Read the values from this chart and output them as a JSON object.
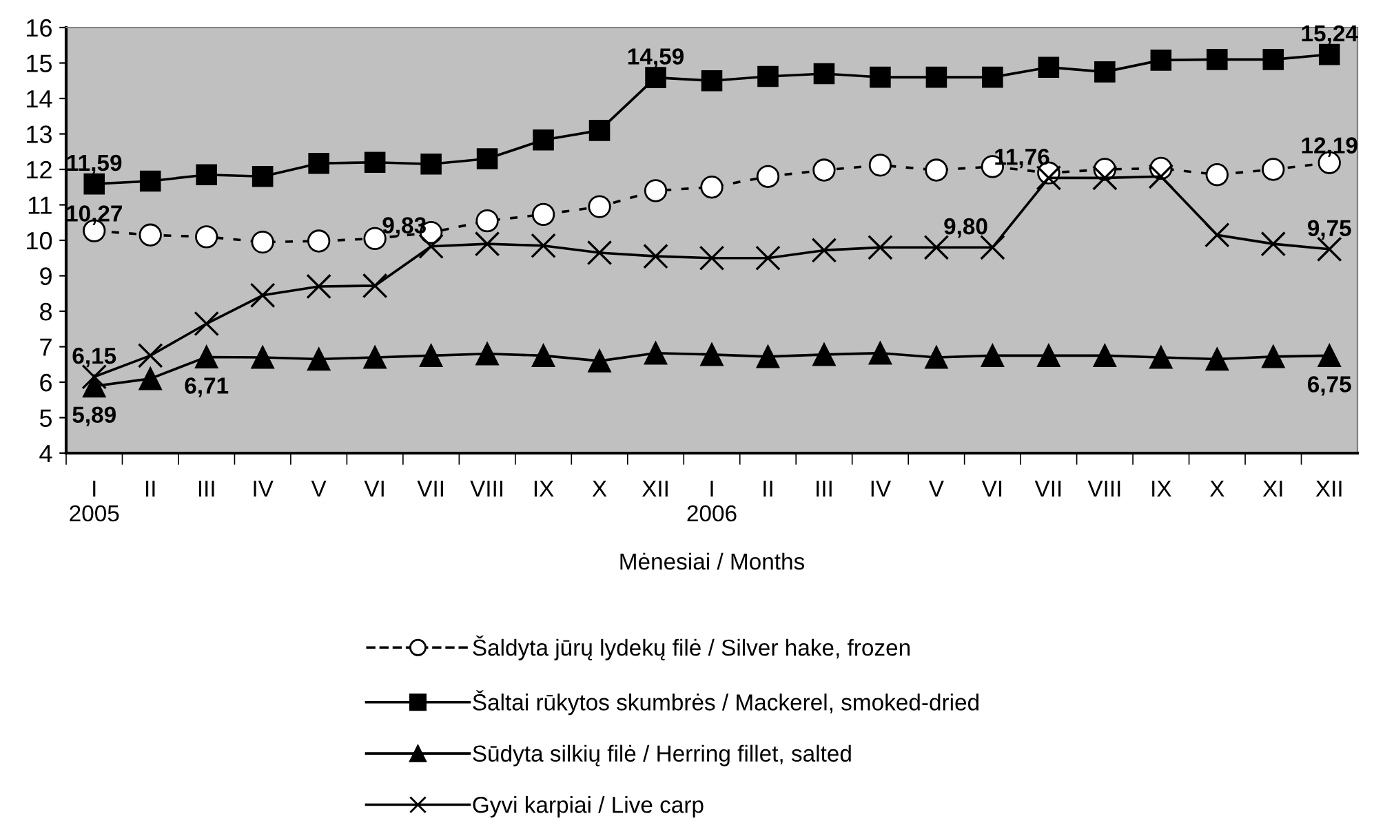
{
  "chart_data": {
    "type": "line",
    "xlabel": "Mėnesiai / Months",
    "categories": [
      "I\n2005",
      "II",
      "III",
      "IV",
      "V",
      "VI",
      "VII",
      "VIII",
      "IX",
      "X",
      "XII",
      "I\n2006",
      "II",
      "III",
      "IV",
      "V",
      "VI",
      "VII",
      "VIII",
      "IX",
      "X",
      "XI",
      "XII"
    ],
    "ylim": [
      4,
      16
    ],
    "yticks": [
      4,
      5,
      6,
      7,
      8,
      9,
      10,
      11,
      12,
      13,
      14,
      15,
      16
    ],
    "grid": false,
    "legend": "bottom",
    "series": [
      {
        "name": "Šaldyta jūrų lydekų filė / Silver hake, frozen",
        "color": "#000000",
        "marker": "circle",
        "line_style": "dashed",
        "values": [
          10.27,
          10.15,
          10.1,
          9.95,
          9.98,
          10.05,
          10.22,
          10.55,
          10.73,
          10.95,
          11.4,
          11.5,
          11.8,
          11.98,
          12.12,
          11.98,
          12.08,
          11.9,
          12.0,
          12.03,
          11.85,
          12.0,
          12.19
        ],
        "value_labels": [
          "10,27",
          null,
          null,
          null,
          null,
          null,
          null,
          null,
          null,
          null,
          null,
          null,
          null,
          null,
          null,
          null,
          null,
          null,
          null,
          null,
          null,
          null,
          "12,19"
        ]
      },
      {
        "name": "Šaltai rūkytos skumbrės / Mackerel, smoked-dried",
        "color": "#000000",
        "marker": "square",
        "line_style": "solid",
        "values": [
          11.59,
          11.67,
          11.85,
          11.8,
          12.17,
          12.2,
          12.15,
          12.3,
          12.83,
          13.1,
          14.59,
          14.5,
          14.62,
          14.7,
          14.6,
          14.6,
          14.6,
          14.88,
          14.75,
          15.08,
          15.1,
          15.1,
          15.24
        ],
        "value_labels": [
          "11,59",
          null,
          null,
          null,
          null,
          null,
          null,
          null,
          null,
          null,
          "14,59",
          null,
          null,
          null,
          null,
          null,
          null,
          null,
          null,
          null,
          null,
          null,
          "15,24"
        ]
      },
      {
        "name": "Sūdyta silkių filė / Herring fillet, salted",
        "color": "#000000",
        "marker": "triangle",
        "line_style": "solid",
        "values": [
          5.89,
          6.1,
          6.71,
          6.7,
          6.65,
          6.7,
          6.75,
          6.8,
          6.75,
          6.6,
          6.82,
          6.78,
          6.72,
          6.78,
          6.82,
          6.7,
          6.75,
          6.75,
          6.75,
          6.7,
          6.65,
          6.72,
          6.75
        ],
        "value_labels": [
          "5,89",
          null,
          "6,71",
          null,
          null,
          null,
          null,
          null,
          null,
          null,
          null,
          null,
          null,
          null,
          null,
          null,
          null,
          null,
          null,
          null,
          null,
          null,
          "6,75"
        ]
      },
      {
        "name": "Gyvi karpiai / Live carp",
        "color": "#000000",
        "marker": "cross",
        "line_style": "solid",
        "values": [
          6.15,
          6.75,
          7.65,
          8.45,
          8.7,
          8.72,
          9.83,
          9.9,
          9.85,
          9.65,
          9.55,
          9.5,
          9.5,
          9.72,
          9.8,
          9.8,
          9.8,
          11.76,
          11.76,
          11.8,
          10.15,
          9.9,
          9.75
        ],
        "value_labels": [
          "6,15",
          null,
          null,
          null,
          null,
          null,
          "9,83",
          null,
          null,
          null,
          null,
          null,
          null,
          null,
          null,
          null,
          "9,80",
          "11,76",
          null,
          null,
          null,
          null,
          "9,75"
        ]
      }
    ]
  }
}
